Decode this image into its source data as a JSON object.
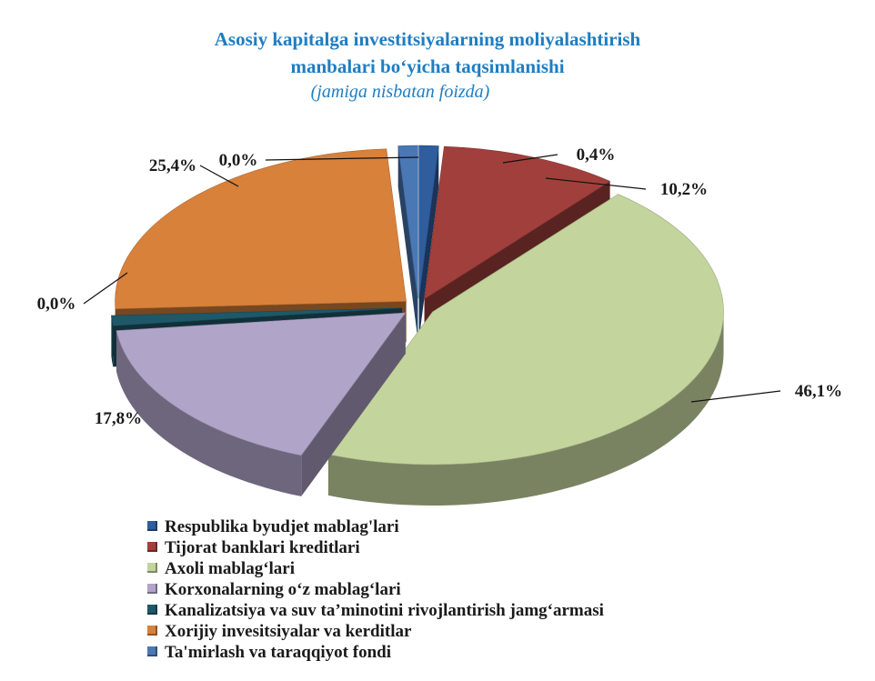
{
  "title_line1": "Asosiy kapitalga investitsiyalarning moliyalashtirish",
  "title_line2": "manbalari bo‘yicha taqsimlanishi",
  "subtitle": "(jamiga nisbatan foizda)",
  "chart_data": {
    "type": "pie",
    "style": "3d-exploded",
    "legend_position": "bottom",
    "slices": [
      {
        "name": "Respublika byudjet mablag'lari",
        "value": 0.4,
        "label": "0,4%",
        "color": "#2F5D9E"
      },
      {
        "name": "Tijorat banklari kreditlari",
        "value": 10.2,
        "label": "10,2%",
        "color": "#A13F3C"
      },
      {
        "name": "Axoli mablag‘lari",
        "value": 46.1,
        "label": "46,1%",
        "color": "#C3D49C"
      },
      {
        "name": "Korxonalarning o‘z mablag‘lari",
        "value": 17.8,
        "label": "17,8%",
        "color": "#B1A4C9"
      },
      {
        "name": "Kanalizatsiya va suv ta’minotini rivojlantirish jamg‘armasi",
        "value": 0.0,
        "label": "0,0%",
        "color": "#1F5868"
      },
      {
        "name": "Xorijiy invesitsiyalar va kerditlar",
        "value": 25.4,
        "label": "25,4%",
        "color": "#D8813B"
      },
      {
        "name": "Ta'mirlash va taraqqiyot fondi",
        "value": 0.0,
        "label": "0,0%",
        "color": "#4A78B5"
      }
    ]
  }
}
